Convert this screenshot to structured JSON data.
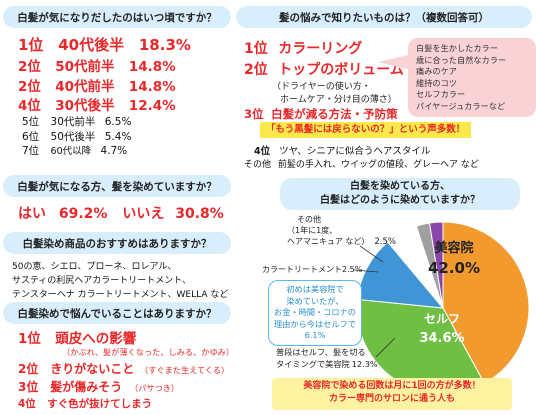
{
  "q1": {
    "header": "白髪が気になりだしたのはいつ頃ですか？",
    "items": [
      {
        "rank": "1位",
        "label": "40代後半",
        "pct": "18.3%"
      },
      {
        "rank": "2位",
        "label": "50代前半",
        "pct": "14.8%"
      },
      {
        "rank": "2位",
        "label": "40代前半",
        "pct": "14.8%"
      },
      {
        "rank": "4位",
        "label": "30代後半",
        "pct": "12.4%"
      },
      {
        "rank": "5位",
        "label": "30代前半",
        "pct": "6.5%"
      },
      {
        "rank": "6位",
        "label": "50代後半",
        "pct": "5.4%"
      },
      {
        "rank": "7位",
        "label": "60代以降",
        "pct": "4.7%"
      }
    ]
  },
  "q2": {
    "header": "髪の悩みで知りたいものは？（複数回答可）",
    "rank1": {
      "rank": "1位",
      "label": "カラーリング"
    },
    "rank2": {
      "rank": "2位",
      "label": "トップのボリューム",
      "sub1": "（ドライヤーの使い方・",
      "sub2": "ホームケア・分け目の薄さ）"
    },
    "rank3": {
      "rank": "3位",
      "label": "白髪が減る方法・予防策"
    },
    "callout": [
      "白髪を生かしたカラー",
      "歳に合った自然なカラー",
      "痛みのケア",
      "維持のコツ",
      "セルフカラー",
      "パイヤージュカラーなど"
    ],
    "highlight": "「もう黒髪には戻らないの？」という声多数！",
    "rank4": {
      "rank": "4位",
      "label": "ツヤ、シニアに似合うヘアスタイル"
    },
    "other": {
      "rank": "その他",
      "label": "前髪の手入れ、ウイッグの値段、グレーヘア など"
    }
  },
  "q3": {
    "header": "白髪が気になる方、髪を染めていますか？",
    "yes_label": "はい",
    "yes_pct": "69.2%",
    "no_label": "いいえ",
    "no_pct": "30.8%"
  },
  "q4": {
    "header": "白髪染め商品のおすすめはありますか？",
    "lines": [
      "50の恵、シエロ、プローネ、ロレアル、",
      "サスティの利尻ヘアカラートリートメント、",
      "テンスターヘナ カラートリートメント、WELLA など"
    ]
  },
  "q5": {
    "header": "白髪染めで悩んでいることはありますか？",
    "items": [
      {
        "rank": "1位",
        "label": "頭皮への影響",
        "sub": "（かぶれ、髪が薄くなった、しみる、かゆみ）"
      },
      {
        "rank": "2位",
        "label": "きりがないこと",
        "sub": "（すぐまた生えてくる）"
      },
      {
        "rank": "3位",
        "label": "髪が傷みそう",
        "sub": "（パサつき）"
      },
      {
        "rank": "4位",
        "label": "すぐ色が抜けてしまう",
        "sub": ""
      }
    ]
  },
  "q6": {
    "header_line1": "白髪を染めている方、",
    "header_line2": "白髪はどのように染めていますか？",
    "bubble": [
      "初めは美容院で",
      "染めていたが、",
      "お金・時間・コロナの",
      "理由から今はセルフで",
      "6.1%"
    ],
    "note_line1": "美容院で染める回数は月に1回の方が多数！",
    "note_line2": "カラー専門のサロンに通う人も"
  },
  "chart_data": {
    "type": "pie",
    "title": "",
    "slices": [
      {
        "name": "美容院",
        "value": 42.0,
        "label": "美容院",
        "pct_label": "42.0%",
        "color": "#f39a2e"
      },
      {
        "name": "セルフ",
        "value": 34.6,
        "label": "セルフ",
        "pct_label": "34.6%",
        "color": "#6fbf44"
      },
      {
        "name": "普段はセルフ、髪を切るタイミングで美容院",
        "value": 12.3,
        "color": "#3f95d5"
      },
      {
        "name": "初めは美容院で染めていたが、お金・時間・コロナの理由から今はセルフで",
        "value": 6.1,
        "color": "#ffffff"
      },
      {
        "name": "カラートリートメント",
        "value": 2.5,
        "color": "#a0a0a0"
      },
      {
        "name": "その他（1年に1度、ヘアマニキュア など）",
        "value": 2.5,
        "color": "#8a45a8"
      }
    ],
    "labels": {
      "other_l1": "その他",
      "other_l2": "（1年に1度、",
      "other_l3": "ヘアマニキュア など）",
      "other_pct": "2.5%",
      "treat": "カラートリートメント",
      "treat_pct": "2.5%",
      "normal_l1": "普段はセルフ、髪を切る",
      "normal_l2": "タイミングで美容院",
      "normal_pct": "12.3%"
    }
  }
}
